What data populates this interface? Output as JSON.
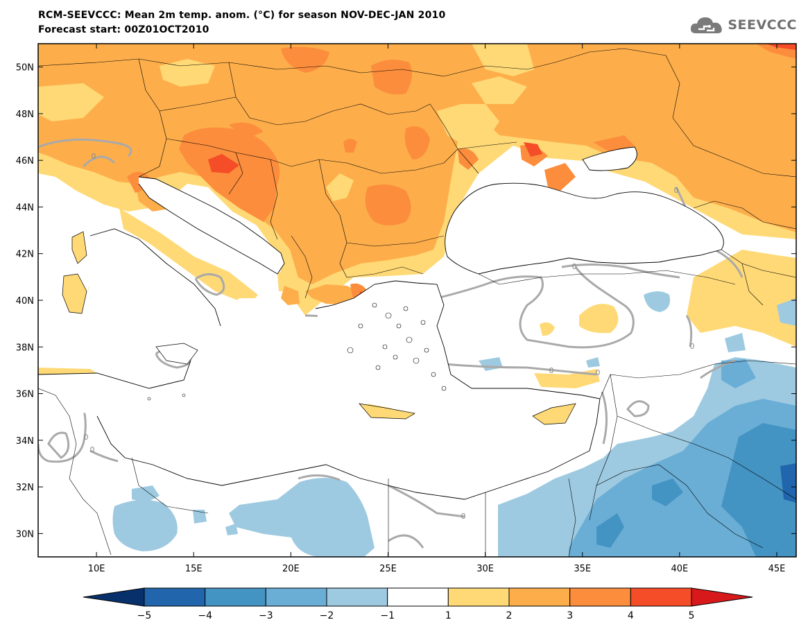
{
  "header": {
    "title": "RCM-SEEVCCC: Mean 2m temp. anom. (°C) for season NOV-DEC-JAN 2010",
    "subtitle": "Forecast start: 00Z01OCT2010"
  },
  "logo": {
    "text": "SEEVCCC",
    "icon": "cloud-icon"
  },
  "map": {
    "lon_range": [
      7,
      46
    ],
    "lat_range": [
      29,
      51
    ],
    "lat_ticks": [
      "50N",
      "48N",
      "46N",
      "44N",
      "42N",
      "40N",
      "38N",
      "36N",
      "34N",
      "32N",
      "30N"
    ],
    "lat_values": [
      50,
      48,
      46,
      44,
      42,
      40,
      38,
      36,
      34,
      32,
      30
    ],
    "lon_ticks": [
      "10E",
      "15E",
      "20E",
      "25E",
      "30E",
      "35E",
      "40E",
      "45E"
    ],
    "lon_values": [
      10,
      15,
      20,
      25,
      30,
      35,
      40,
      45
    ],
    "contour_label": "0"
  },
  "colorbar": {
    "labels": [
      "−5",
      "−4",
      "−3",
      "−2",
      "−1",
      "1",
      "2",
      "3",
      "4",
      "5"
    ],
    "values": [
      -5,
      -4,
      -3,
      -2,
      -1,
      1,
      2,
      3,
      4,
      5
    ],
    "colors": [
      "#08306b",
      "#2166ac",
      "#4393c3",
      "#6aaed6",
      "#9ecae1",
      "#ffffff",
      "#fed976",
      "#fdae4b",
      "#fc8d3c",
      "#f44d27",
      "#d7191c"
    ]
  }
}
